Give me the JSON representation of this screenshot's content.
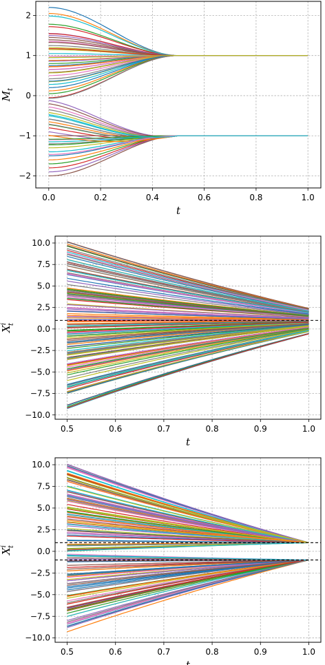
{
  "palette": [
    "#1f77b4",
    "#ff7f0e",
    "#2ca02c",
    "#d62728",
    "#9467bd",
    "#8c564b",
    "#e377c2",
    "#7f7f7f",
    "#bcbd22",
    "#17becf"
  ],
  "chart_data": [
    {
      "type": "line",
      "id": "top",
      "xlabel": "t",
      "ylabel": "M",
      "ylabel_sub": "t",
      "xlim": [
        -0.05,
        1.05
      ],
      "ylim": [
        -2.3,
        2.35
      ],
      "xticks": [
        0.0,
        0.2,
        0.4,
        0.6,
        0.8,
        1.0
      ],
      "xtick_labels": [
        "0.0",
        "0.2",
        "0.4",
        "0.6",
        "0.8",
        "1.0"
      ],
      "yticks": [
        -2,
        -1,
        0,
        1,
        2
      ],
      "ytick_labels": [
        "−2",
        "−1",
        "0",
        "1",
        "2"
      ],
      "grid": true,
      "series_count": 70,
      "series_start_values": [
        2.2,
        2.05,
        1.78,
        1.72,
        1.55,
        1.45,
        1.35,
        1.25,
        1.15,
        1.05,
        0.95,
        0.88,
        0.8,
        0.72,
        0.65,
        0.58,
        0.5,
        0.42,
        0.35,
        0.28,
        0.2,
        0.12,
        0.05,
        -0.05,
        -0.12,
        -0.2,
        -0.28,
        -0.35,
        -0.42,
        -0.5,
        -0.58,
        -0.65,
        -0.72,
        -0.8,
        -0.9,
        -1.0,
        -1.1,
        -1.2,
        -1.3,
        -1.4,
        -1.5,
        -1.6,
        -1.7,
        -1.8,
        -1.9,
        -2.0
      ],
      "convergence_time": 0.5,
      "limits": [
        1,
        -1
      ]
    },
    {
      "type": "line",
      "id": "middle",
      "xlabel": "t",
      "ylabel": "X",
      "ylabel_sup": "i",
      "ylabel_sub": "t",
      "xlim": [
        0.475,
        1.025
      ],
      "ylim": [
        -10.5,
        10.8
      ],
      "xticks": [
        0.5,
        0.6,
        0.7,
        0.8,
        0.9,
        1.0
      ],
      "xtick_labels": [
        "0.5",
        "0.6",
        "0.7",
        "0.8",
        "0.9",
        "1.0"
      ],
      "yticks": [
        -10,
        -7.5,
        -5,
        -2.5,
        0,
        2.5,
        5,
        7.5,
        10
      ],
      "ytick_labels": [
        "−10.0",
        "−7.5",
        "−5.0",
        "−2.5",
        "0.0",
        "2.5",
        "5.0",
        "7.5",
        "10.0"
      ],
      "grid": true,
      "series_count": 160,
      "start_range": [
        -9.4,
        10.2
      ],
      "end_range": [
        -0.6,
        2.4
      ],
      "reference_lines": [
        1
      ]
    },
    {
      "type": "line",
      "id": "bottom",
      "xlabel": "t",
      "ylabel": "X",
      "ylabel_sup": "i",
      "ylabel_sub": "t",
      "xlim": [
        0.475,
        1.025
      ],
      "ylim": [
        -10.5,
        10.8
      ],
      "xticks": [
        0.5,
        0.6,
        0.7,
        0.8,
        0.9,
        1.0
      ],
      "xtick_labels": [
        "0.5",
        "0.6",
        "0.7",
        "0.8",
        "0.9",
        "1.0"
      ],
      "yticks": [
        -10,
        -7.5,
        -5,
        -2.5,
        0,
        2.5,
        5,
        7.5,
        10
      ],
      "ytick_labels": [
        "−10.0",
        "−7.5",
        "−5.0",
        "−2.5",
        "0.0",
        "2.5",
        "5.0",
        "7.5",
        "10.0"
      ],
      "grid": true,
      "series_count": 160,
      "start_range": [
        -9.4,
        10.2
      ],
      "end_values": [
        1,
        -1
      ],
      "reference_lines": [
        1,
        -1
      ]
    }
  ]
}
